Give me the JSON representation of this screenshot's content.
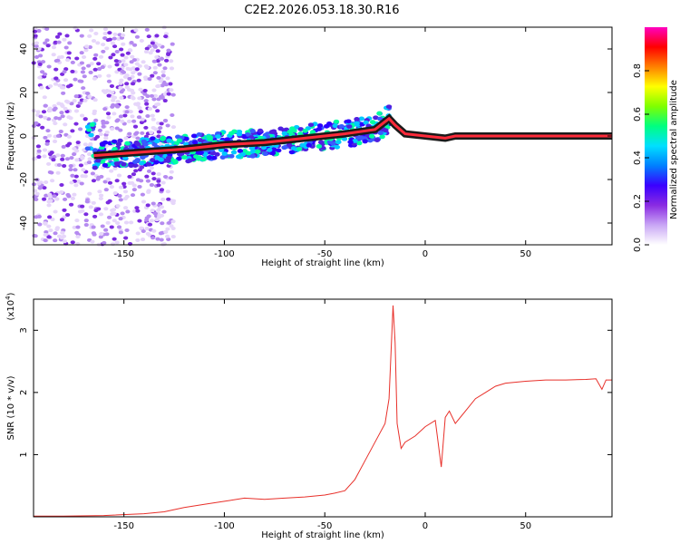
{
  "title": "C2E2.2026.053.18.30.R16",
  "chart_data": [
    {
      "type": "heatmap",
      "xlabel": "Height of straight line (km)",
      "ylabel": "Frequency (Hz)",
      "xlim": [
        -195,
        93
      ],
      "ylim": [
        -50,
        50
      ],
      "x_ticks": [
        -150,
        -100,
        -50,
        0,
        50
      ],
      "y_ticks": [
        -40,
        -20,
        0,
        20,
        40
      ],
      "colorbar": {
        "label": "Normalized spectral amplitude",
        "range": [
          0,
          1
        ],
        "ticks": [
          "0.0",
          "0.2",
          "0.4",
          "0.6",
          "0.8"
        ],
        "colors": [
          "#ffffff",
          "#c9a6f5",
          "#8a2be2",
          "#3a00ff",
          "#0080ff",
          "#00e0ff",
          "#00ff80",
          "#7fff00",
          "#ffff00",
          "#ff8000",
          "#ff0000",
          "#ff00c0"
        ]
      },
      "signal_trace": [
        {
          "x": -165,
          "y": -9
        },
        {
          "x": -150,
          "y": -8
        },
        {
          "x": -135,
          "y": -7
        },
        {
          "x": -120,
          "y": -6
        },
        {
          "x": -100,
          "y": -4
        },
        {
          "x": -80,
          "y": -3
        },
        {
          "x": -60,
          "y": -1
        },
        {
          "x": -40,
          "y": 1
        },
        {
          "x": -25,
          "y": 3
        },
        {
          "x": -18,
          "y": 8
        },
        {
          "x": -15,
          "y": 5
        },
        {
          "x": -10,
          "y": 1
        },
        {
          "x": 0,
          "y": 0
        },
        {
          "x": 10,
          "y": -1
        },
        {
          "x": 15,
          "y": 0
        },
        {
          "x": 93,
          "y": 0
        }
      ]
    },
    {
      "type": "line",
      "xlabel": "Height of straight line (km)",
      "ylabel": "SNR (10 * v/v)",
      "y_multiplier": "(x10^4)",
      "xlim": [
        -195,
        93
      ],
      "ylim": [
        0,
        3.5
      ],
      "x_ticks": [
        -150,
        -100,
        -50,
        0,
        50
      ],
      "y_ticks": [
        1,
        2,
        3
      ],
      "color": "#e8302a",
      "series": [
        {
          "x": [
            -195,
            -180,
            -160,
            -140,
            -130,
            -120,
            -110,
            -100,
            -90,
            -80,
            -70,
            -60,
            -50,
            -45,
            -40,
            -35,
            -30,
            -25,
            -20,
            -18,
            -16,
            -15,
            -14,
            -12,
            -10,
            -5,
            0,
            5,
            8,
            10,
            12,
            15,
            20,
            25,
            30,
            35,
            40,
            50,
            60,
            70,
            80,
            85,
            88,
            90,
            93
          ],
          "y": [
            0.01,
            0.01,
            0.02,
            0.05,
            0.08,
            0.15,
            0.2,
            0.25,
            0.3,
            0.28,
            0.3,
            0.32,
            0.35,
            0.38,
            0.42,
            0.6,
            0.9,
            1.2,
            1.5,
            1.9,
            3.4,
            2.8,
            1.5,
            1.1,
            1.2,
            1.3,
            1.45,
            1.55,
            0.8,
            1.6,
            1.7,
            1.5,
            1.7,
            1.9,
            2.0,
            2.1,
            2.15,
            2.18,
            2.2,
            2.2,
            2.21,
            2.22,
            2.05,
            2.2,
            2.2
          ]
        }
      ]
    }
  ]
}
